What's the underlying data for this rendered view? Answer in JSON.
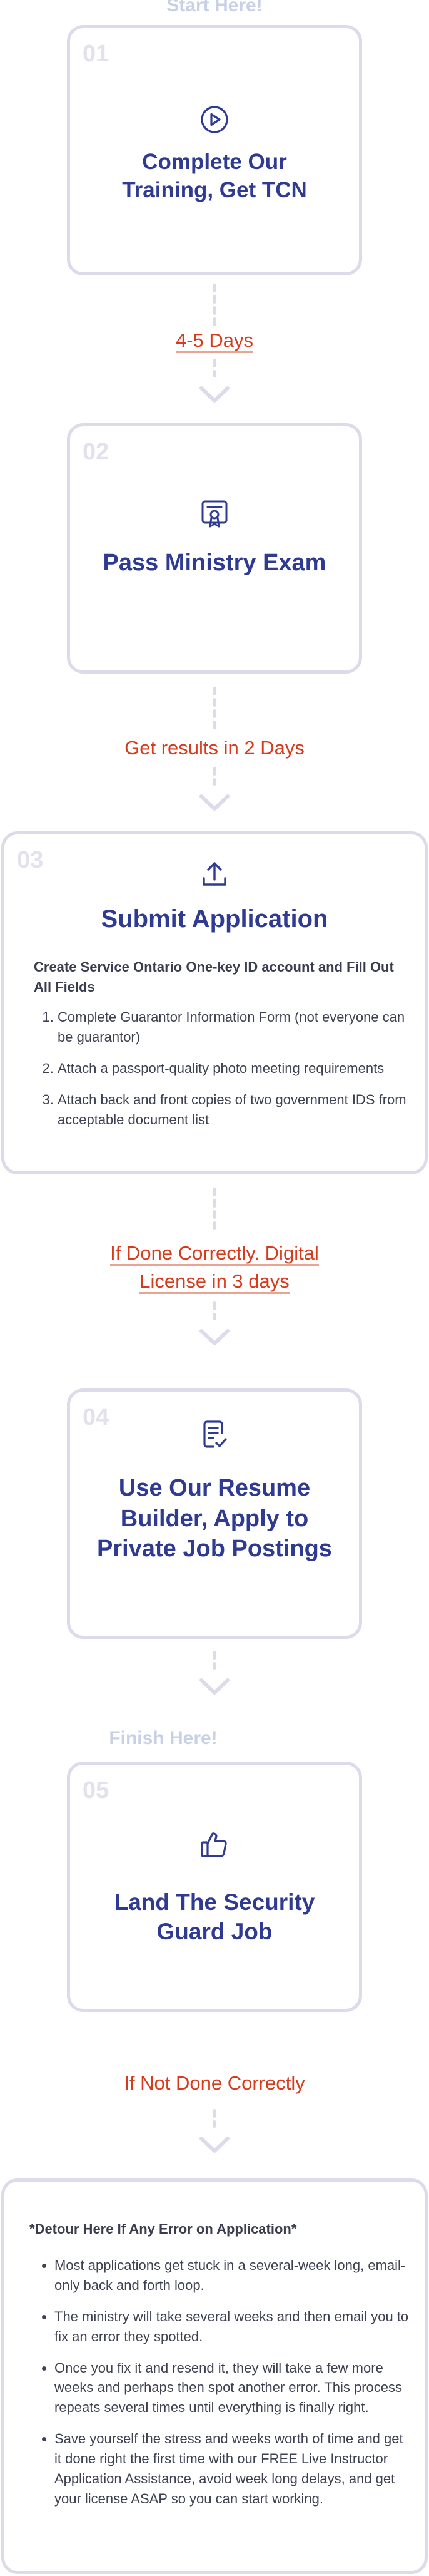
{
  "start_label": "Start Here!",
  "finish_label": "Finish Here!",
  "icons": {
    "step1": "play-circle-icon",
    "step2": "certificate-icon",
    "step3": "upload-icon",
    "step4": "document-check-icon",
    "step5": "thumbs-up-icon",
    "arrow": "chevron-down-icon"
  },
  "colors": {
    "title": "#2f3a92",
    "duration": "#d83a1c",
    "card_border": "#dcdbeb",
    "step_number": "#e2e1ee"
  },
  "steps": [
    {
      "number": "01",
      "title_lines": [
        "Complete Our",
        "Training, Get TCN"
      ]
    },
    {
      "number": "02",
      "title_lines": [
        "Pass Ministry Exam"
      ]
    },
    {
      "number": "03",
      "title_lines": [
        "Submit Application"
      ],
      "subtitle": "Create Service Ontario One-key ID account and Fill Out All Fields",
      "items": [
        "Complete Guarantor Information Form (not everyone can be guarantor)",
        "Attach a passport-quality photo meeting requirements",
        "Attach back and front copies of two government IDS from acceptable document list"
      ]
    },
    {
      "number": "04",
      "title_lines": [
        "Use Our Resume",
        "Builder, Apply to",
        "Private Job Postings"
      ]
    },
    {
      "number": "05",
      "title_lines": [
        "Land The Security",
        "Guard Job"
      ]
    }
  ],
  "durations": {
    "d1": "4-5 Days",
    "d2": "Get results in 2 Days",
    "d3_lines": [
      "If Done Correctly. Digital",
      "License in 3 days"
    ],
    "d4": "If Not Done Correctly"
  },
  "detour": {
    "heading": "*Detour Here If Any Error on Application*",
    "items": [
      "Most applications get stuck in a several-week long, email-only back and forth loop.",
      "The ministry will take several weeks and then email you to fix an error they spotted.",
      "Once you fix it and resend it, they will take a few more weeks and perhaps then spot another error. This process repeats several times until everything is finally right.",
      "Save yourself the stress and weeks worth of time and get it done right the first time with our FREE Live Instructor Application Assistance, avoid week long delays, and get your license ASAP so you can start working."
    ]
  }
}
